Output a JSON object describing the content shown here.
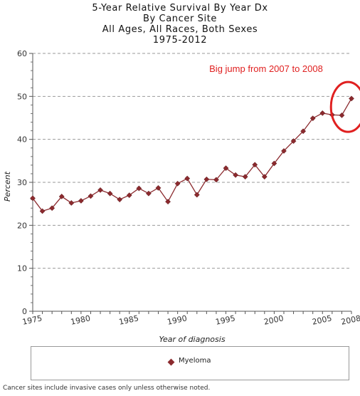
{
  "chart_data": {
    "type": "line",
    "title": [
      "5-Year Relative Survival By Year Dx",
      "By Cancer Site",
      "All Ages, All Races, Both Sexes",
      "1975-2012"
    ],
    "xlabel": "Year of diagnosis",
    "ylabel": "Percent",
    "xlim": [
      1975,
      2008
    ],
    "ylim": [
      0,
      60
    ],
    "x_ticks": [
      1975,
      1980,
      1985,
      1990,
      1995,
      2000,
      2005,
      2008
    ],
    "y_ticks": [
      0,
      10,
      20,
      30,
      40,
      50,
      60
    ],
    "grid": "horizontal dashed",
    "legend_position": "bottom",
    "series": [
      {
        "name": "Myeloma",
        "color": "#8b2a2e",
        "x": [
          1975,
          1976,
          1977,
          1978,
          1979,
          1980,
          1981,
          1982,
          1983,
          1984,
          1985,
          1986,
          1987,
          1988,
          1989,
          1990,
          1991,
          1992,
          1993,
          1994,
          1995,
          1996,
          1997,
          1998,
          1999,
          2000,
          2001,
          2002,
          2003,
          2004,
          2005,
          2006,
          2007,
          2008
        ],
        "values": [
          26.3,
          23.3,
          24.0,
          26.7,
          25.2,
          25.7,
          26.8,
          28.2,
          27.4,
          26.0,
          27.0,
          28.6,
          27.4,
          28.7,
          25.5,
          29.7,
          30.9,
          27.1,
          30.7,
          30.6,
          33.3,
          31.7,
          31.3,
          34.1,
          31.3,
          34.4,
          37.3,
          39.6,
          41.9,
          44.9,
          46.1,
          45.7,
          45.6,
          49.5
        ]
      }
    ],
    "annotation": {
      "text": "Big jump from 2007 to 2008",
      "color": "#e02020",
      "highlight_years": [
        2007,
        2008
      ]
    }
  },
  "legend": {
    "label": "Myeloma"
  },
  "footnote": "Cancer sites include invasive cases only unless otherwise noted."
}
